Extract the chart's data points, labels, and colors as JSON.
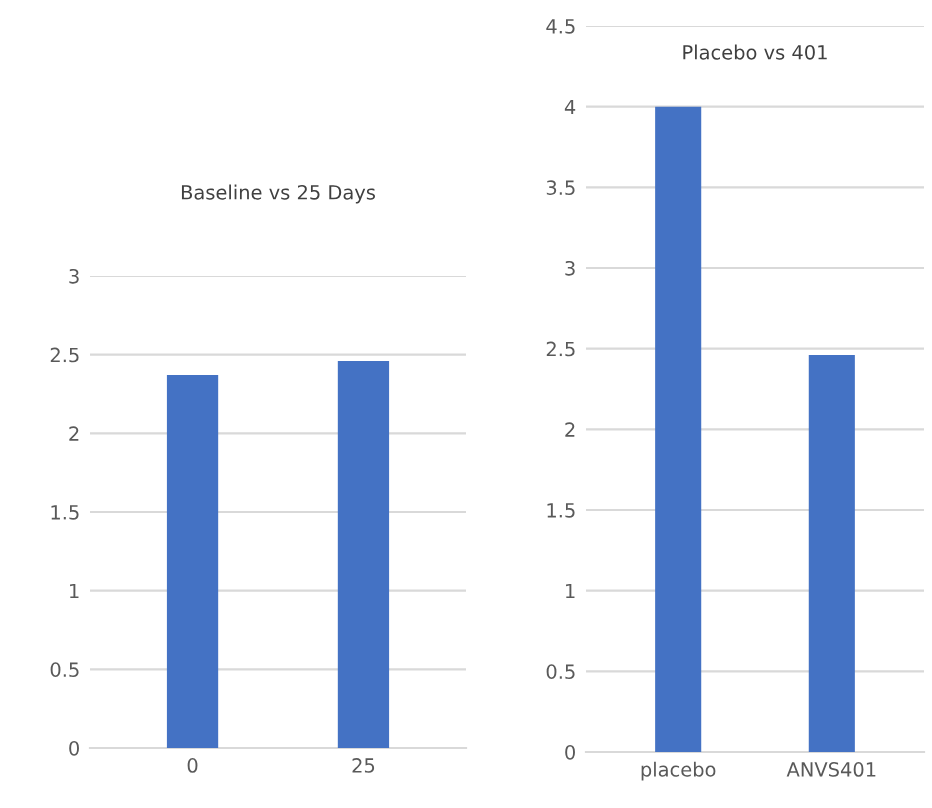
{
  "chart_data": [
    {
      "type": "bar",
      "title": "Baseline vs 25 Days",
      "categories": [
        "0",
        "25"
      ],
      "values": [
        2.37,
        2.46
      ],
      "color": "#4472c4",
      "ylim": [
        0,
        3
      ],
      "yticks": [
        0,
        0.5,
        1,
        1.5,
        2,
        2.5,
        3
      ],
      "grid": "y"
    },
    {
      "type": "bar",
      "title": "Placebo vs 401",
      "categories": [
        "placebo",
        "ANVS401"
      ],
      "values": [
        4.0,
        2.46
      ],
      "color": "#4472c4",
      "ylim": [
        0,
        4.5
      ],
      "yticks": [
        0,
        0.5,
        1,
        1.5,
        2,
        2.5,
        3,
        3.5,
        4,
        4.5
      ],
      "grid": "y"
    }
  ]
}
